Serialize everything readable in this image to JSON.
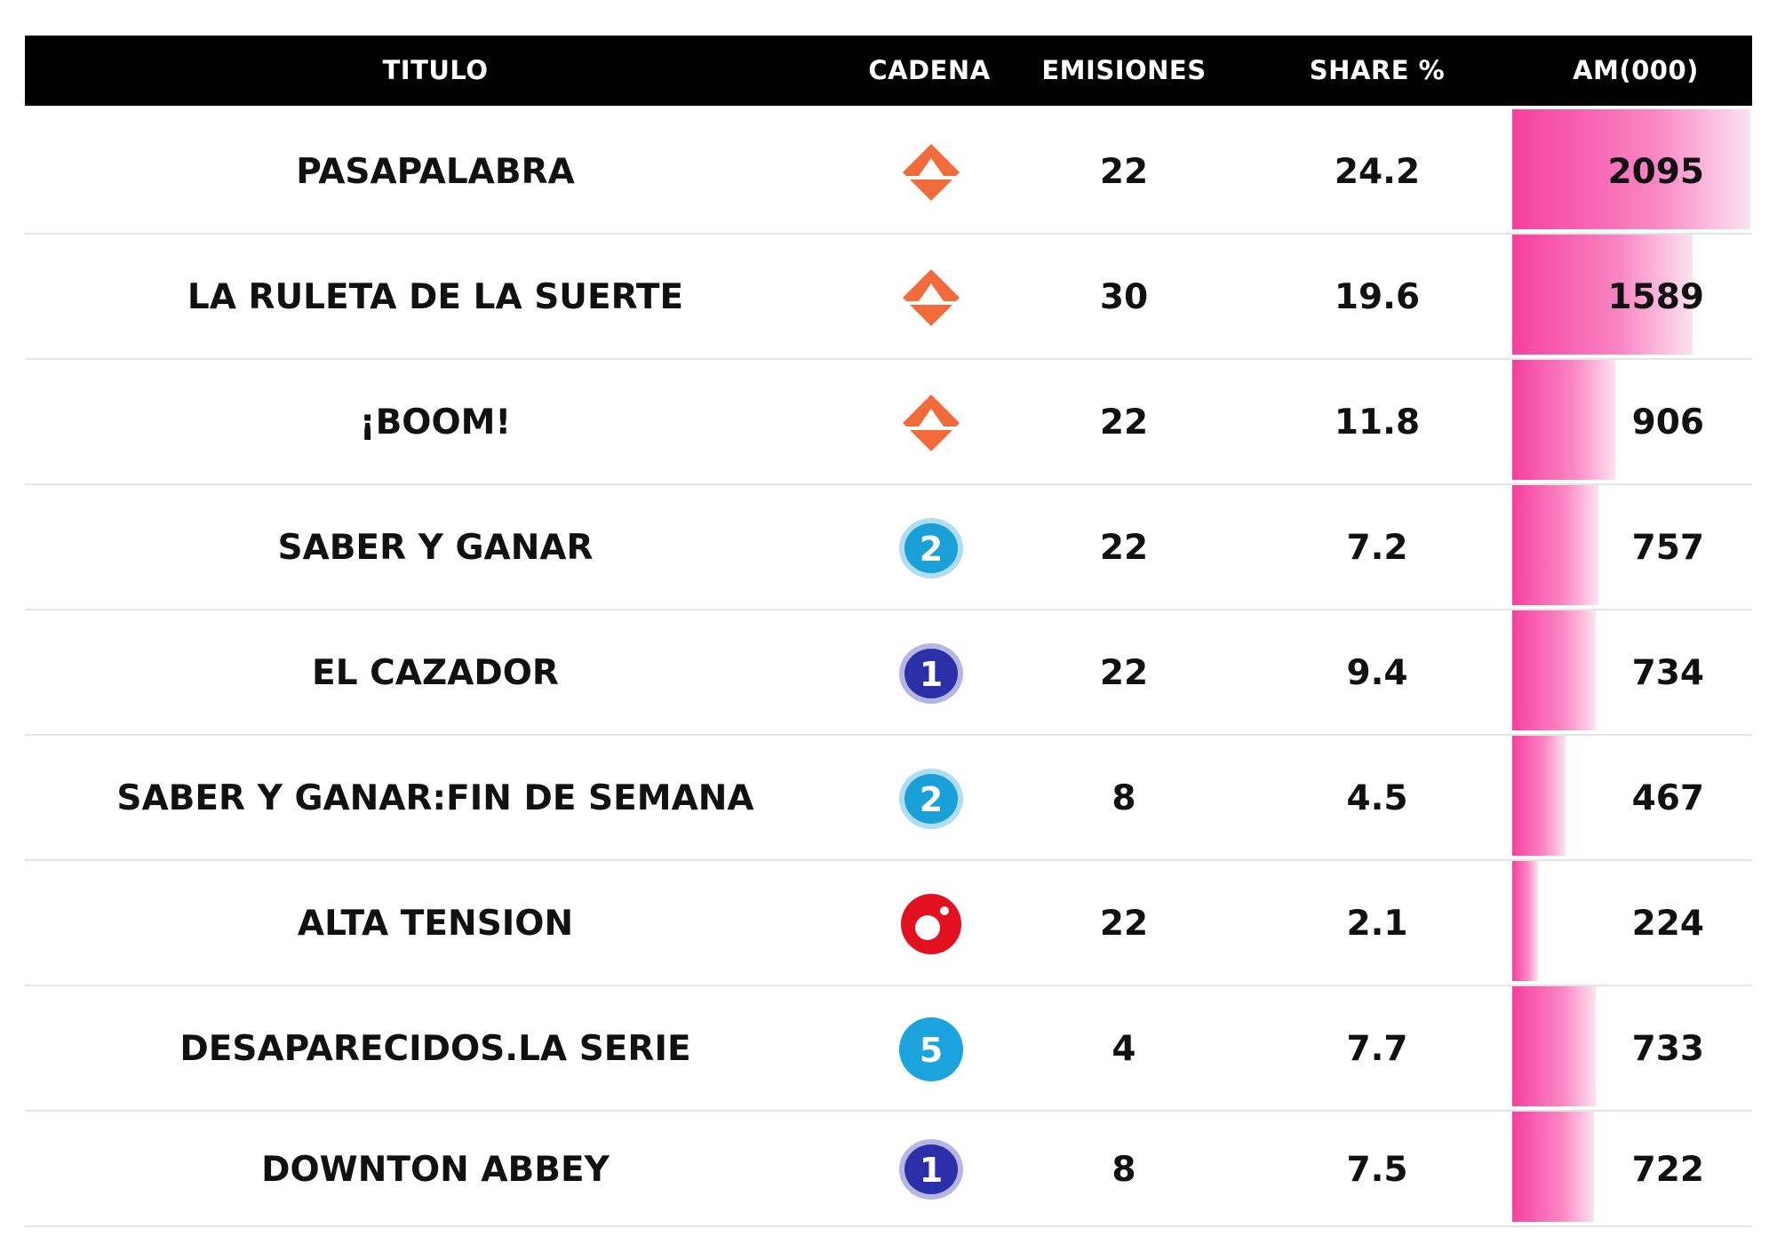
{
  "chart_data": {
    "type": "table",
    "columns": [
      "TITULO",
      "CADENA",
      "EMISIONES",
      "SHARE %",
      "AM(000)"
    ],
    "rows": [
      {
        "titulo": "PASAPALABRA",
        "cadena": "antena3-icon",
        "emisiones": "22",
        "share": "24.2",
        "am": "2095",
        "am_value": 2095
      },
      {
        "titulo": "LA RULETA DE LA SUERTE",
        "cadena": "antena3-icon",
        "emisiones": "30",
        "share": "19.6",
        "am": "1589",
        "am_value": 1589
      },
      {
        "titulo": "¡BOOM!",
        "cadena": "antena3-icon",
        "emisiones": "22",
        "share": "11.8",
        "am": "906",
        "am_value": 906
      },
      {
        "titulo": "SABER Y GANAR",
        "cadena": "la2-icon",
        "emisiones": "22",
        "share": "7.2",
        "am": "757",
        "am_value": 757
      },
      {
        "titulo": "EL CAZADOR",
        "cadena": "la1-icon",
        "emisiones": "22",
        "share": "9.4",
        "am": "734",
        "am_value": 734
      },
      {
        "titulo": "SABER Y GANAR:FIN DE SEMANA",
        "cadena": "la2-icon",
        "emisiones": "8",
        "share": "4.5",
        "am": "467",
        "am_value": 467
      },
      {
        "titulo": "ALTA TENSION",
        "cadena": "cuatro-icon",
        "emisiones": "22",
        "share": "2.1",
        "am": "224",
        "am_value": 224
      },
      {
        "titulo": "DESAPARECIDOS.LA SERIE",
        "cadena": "telecinco-icon",
        "emisiones": "4",
        "share": "7.7",
        "am": "733",
        "am_value": 733
      },
      {
        "titulo": "DOWNTON ABBEY",
        "cadena": "la1-icon",
        "emisiones": "8",
        "share": "7.5",
        "am": "722",
        "am_value": 722
      }
    ],
    "bar_column": "AM(000)",
    "bar_max": 2095
  },
  "colors": {
    "header_background": "#000000",
    "header_text": "#ffffff",
    "bar_start": "#f53f9f",
    "bar_end": "#fde2f0",
    "antena3": "#f26b3a",
    "la1": "#2b2fa8",
    "la2": "#1aa0d8",
    "cuatro": "#e3101f",
    "telecinco": "#1aa3dc"
  }
}
